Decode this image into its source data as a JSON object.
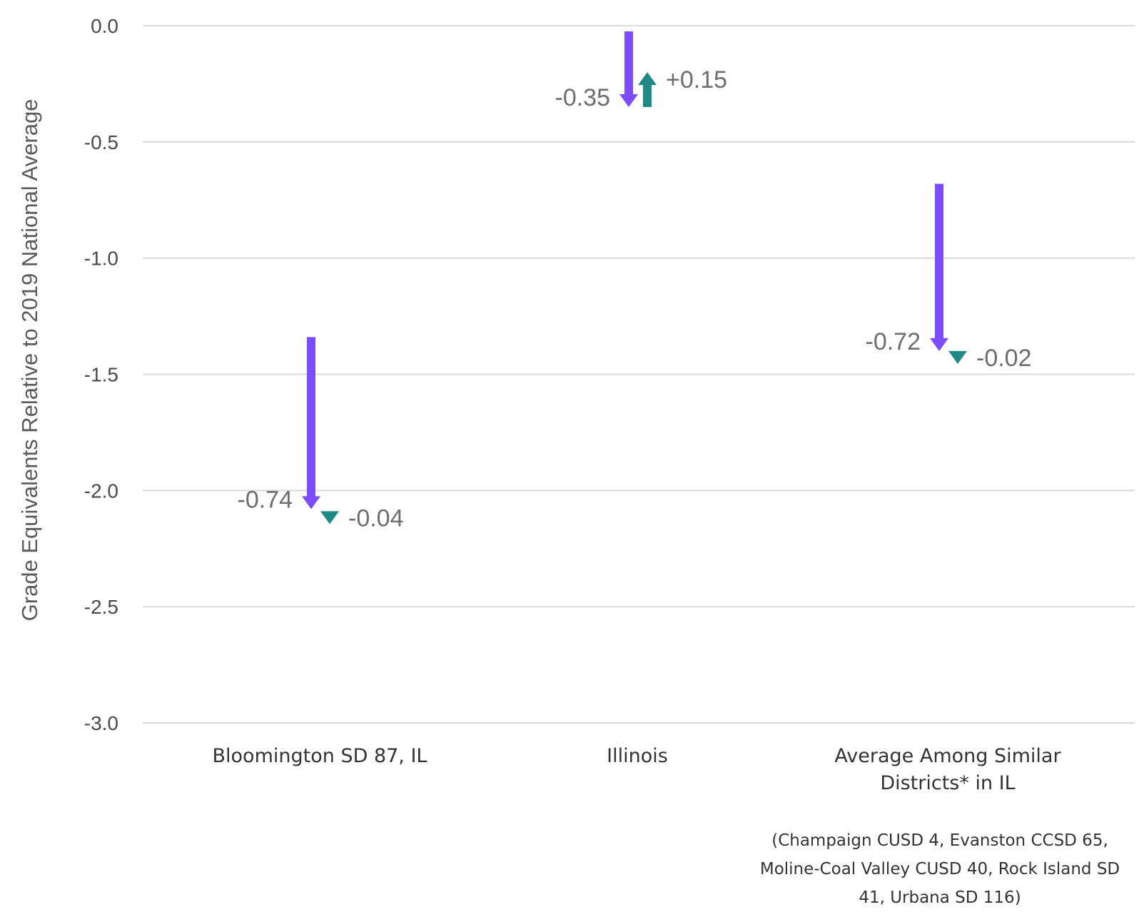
{
  "colors": {
    "decline_2019_2022": "#7b4dff",
    "change_2022_2023": "#1f8a85",
    "grid": "#d9d9d9",
    "text": "#4a4a4a"
  },
  "chart_data": {
    "type": "arrow",
    "ylabel": "Grade Equivalents Relative to 2019 National Average",
    "ylim": [
      -3.0,
      0.0
    ],
    "yticks": [
      "0.0",
      "-0.5",
      "-1.0",
      "-1.5",
      "-2.0",
      "-2.5",
      "-3.0"
    ],
    "grid": true,
    "categories": [
      {
        "label_lines": [
          "Bloomington SD 87, IL"
        ],
        "start": -1.34,
        "decline": -0.74,
        "decline_label": "-0.74",
        "change": -0.04,
        "change_label": "-0.04"
      },
      {
        "label_lines": [
          "Illinois"
        ],
        "start": 0.0,
        "decline": -0.35,
        "decline_label": "-0.35",
        "change": 0.15,
        "change_label": "+0.15"
      },
      {
        "label_lines": [
          "Average Among Similar",
          "Districts* in IL"
        ],
        "start": -0.68,
        "decline": -0.72,
        "decline_label": "-0.72",
        "change": -0.02,
        "change_label": "-0.02"
      }
    ]
  },
  "footnote": {
    "lines": [
      "(Champaign CUSD 4, Evanston CCSD 65,",
      "Moline-Coal Valley CUSD 40, Rock Island SD",
      "41, Urbana SD 116)"
    ]
  }
}
